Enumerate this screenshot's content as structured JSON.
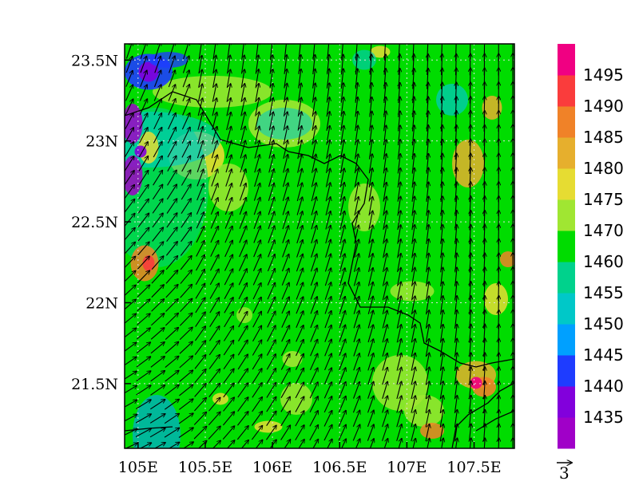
{
  "chart_data": {
    "type": "heatmap",
    "title": "",
    "x_ticks": [
      "105E",
      "105.5E",
      "106E",
      "106.5E",
      "107E",
      "107.5E"
    ],
    "x_tick_values": [
      105,
      105.5,
      106,
      106.5,
      107,
      107.5
    ],
    "y_ticks": [
      "23.5N",
      "23N",
      "22.5N",
      "22N",
      "21.5N"
    ],
    "y_tick_values": [
      23.5,
      23,
      22.5,
      22,
      21.5
    ],
    "xlim": [
      104.9,
      107.8
    ],
    "ylim": [
      21.1,
      23.6
    ],
    "grid": true,
    "colorbar": {
      "labels": [
        "1435",
        "1440",
        "1445",
        "1450",
        "1455",
        "1460",
        "1470",
        "1475",
        "1480",
        "1485",
        "1490",
        "1495"
      ],
      "colors": [
        "#a000c8",
        "#8200dc",
        "#1e3cff",
        "#00a0ff",
        "#00c8c8",
        "#00d28c",
        "#00dc00",
        "#a0e632",
        "#e6dc32",
        "#e6af2d",
        "#f08228",
        "#fa3c3c",
        "#f00082"
      ]
    },
    "vector_reference": {
      "label": "3",
      "value": 3
    },
    "filled_field": [
      {
        "region": "west-edge-low",
        "value_range": [
          1435,
          1450
        ]
      },
      {
        "region": "central-background",
        "value": 1465
      },
      {
        "region": "southeast-high",
        "value_range": [
          1475,
          1495
        ]
      }
    ],
    "wind_vectors": {
      "description": "predominantly southerly to southwesterly flow",
      "speed_range": [
        1,
        4
      ]
    }
  }
}
